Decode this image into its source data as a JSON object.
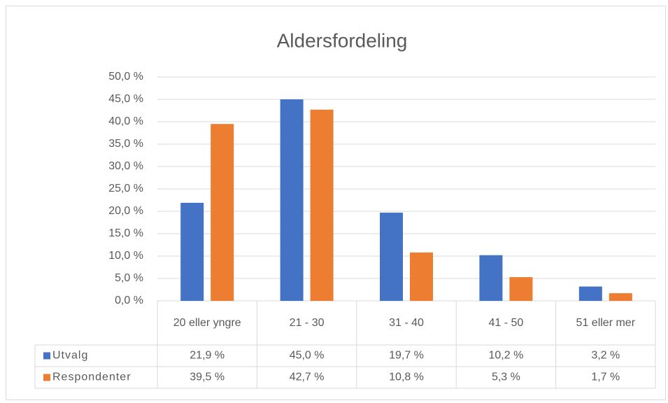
{
  "chart_data": {
    "type": "bar",
    "title": "Aldersfordeling",
    "categories": [
      "20 eller yngre",
      "21 - 30",
      "31 - 40",
      "41 - 50",
      "51 eller mer"
    ],
    "series": [
      {
        "name": "Utvalg",
        "color": "#4472c4",
        "values": [
          21.9,
          45.0,
          19.7,
          10.2,
          3.2
        ],
        "value_labels": [
          "21,9 %",
          "45,0 %",
          "19,7 %",
          "10,2 %",
          "3,2 %"
        ]
      },
      {
        "name": "Respondenter",
        "color": "#ed7d31",
        "values": [
          39.5,
          42.7,
          10.8,
          5.3,
          1.7
        ],
        "value_labels": [
          "39,5 %",
          "42,7 %",
          "10,8 %",
          "5,3 %",
          "1,7 %"
        ]
      }
    ],
    "ylim": [
      0,
      50
    ],
    "yticks": [
      {
        "value": 0,
        "label": "0,0 %"
      },
      {
        "value": 5,
        "label": "5,0 %"
      },
      {
        "value": 10,
        "label": "10,0 %"
      },
      {
        "value": 15,
        "label": "15,0 %"
      },
      {
        "value": 20,
        "label": "20,0 %"
      },
      {
        "value": 25,
        "label": "25,0 %"
      },
      {
        "value": 30,
        "label": "30,0 %"
      },
      {
        "value": 35,
        "label": "35,0 %"
      },
      {
        "value": 40,
        "label": "40,0 %"
      },
      {
        "value": 45,
        "label": "45,0 %"
      },
      {
        "value": 50,
        "label": "50,0 %"
      }
    ],
    "grid": true
  }
}
